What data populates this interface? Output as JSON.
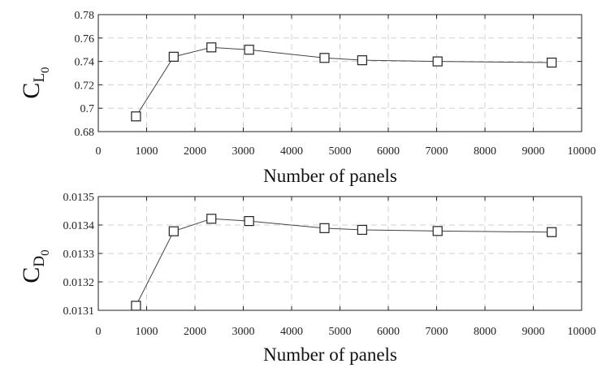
{
  "chart_data": [
    {
      "type": "line",
      "ylabel_main": "C",
      "ylabel_sub": "L",
      "ylabel_subsub": "0",
      "xlabel": "Number of panels",
      "xlim": [
        0,
        10000
      ],
      "ylim": [
        0.68,
        0.78
      ],
      "xticks": [
        "0",
        "1000",
        "2000",
        "3000",
        "4000",
        "5000",
        "6000",
        "7000",
        "8000",
        "9000",
        "10000"
      ],
      "yticks": [
        "0.68",
        "0.7",
        "0.72",
        "0.74",
        "0.76",
        "0.78"
      ],
      "grid": true,
      "marker": "square",
      "x": [
        780,
        1560,
        2340,
        3120,
        4680,
        5460,
        7020,
        9380
      ],
      "y": [
        0.693,
        0.744,
        0.752,
        0.75,
        0.743,
        0.741,
        0.74,
        0.739
      ]
    },
    {
      "type": "line",
      "ylabel_main": "C",
      "ylabel_sub": "D",
      "ylabel_subsub": "0",
      "xlabel": "Number of panels",
      "xlim": [
        0,
        10000
      ],
      "ylim": [
        0.0131,
        0.0135
      ],
      "xticks": [
        "0",
        "1000",
        "2000",
        "3000",
        "4000",
        "5000",
        "6000",
        "7000",
        "8000",
        "9000",
        "10000"
      ],
      "yticks": [
        "0.0131",
        "0.0132",
        "0.0133",
        "0.0134",
        "0.0135"
      ],
      "grid": true,
      "marker": "square",
      "x": [
        780,
        1560,
        2340,
        3120,
        4680,
        5460,
        7020,
        9380
      ],
      "y": [
        0.013116,
        0.013378,
        0.013422,
        0.013414,
        0.013389,
        0.013383,
        0.013379,
        0.013375
      ]
    }
  ]
}
